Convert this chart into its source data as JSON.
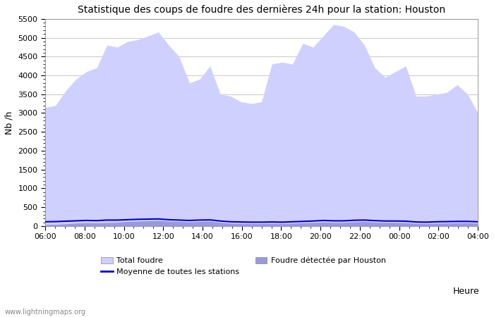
{
  "title": "Statistique des coups de foudre des dernières 24h pour la station: Houston",
  "ylabel": "Nb /h",
  "xlabel": "Heure",
  "watermark": "www.lightningmaps.org",
  "x_labels": [
    "06:00",
    "08:00",
    "10:00",
    "12:00",
    "14:00",
    "16:00",
    "18:00",
    "20:00",
    "22:00",
    "00:00",
    "02:00",
    "04:00"
  ],
  "ylim": [
    0,
    5500
  ],
  "yticks": [
    0,
    500,
    1000,
    1500,
    2000,
    2500,
    3000,
    3500,
    4000,
    4500,
    5000,
    5500
  ],
  "bg_color": "#ffffff",
  "grid_color": "#cccccc",
  "fill_total_color": "#d0d0ff",
  "fill_houston_color": "#9999dd",
  "line_color": "#0000cc",
  "legend_total": "Total foudre",
  "legend_avg": "Moyenne de toutes les stations",
  "legend_houston": "Foudre détectée par Houston",
  "total_foudre": [
    3150,
    3200,
    3600,
    3900,
    4100,
    4200,
    4800,
    4750,
    4900,
    4950,
    5050,
    5150,
    4800,
    4500,
    3800,
    3900,
    4250,
    3500,
    3450,
    3300,
    3250,
    3300,
    4300,
    4350,
    4300,
    4850,
    4750,
    5050,
    5350,
    5300,
    5150,
    4800,
    4200,
    3950,
    4100,
    4250,
    3450,
    3450,
    3500,
    3550,
    3750,
    3500,
    3000
  ],
  "houston_foudre": [
    40,
    45,
    60,
    80,
    90,
    85,
    90,
    100,
    120,
    130,
    140,
    150,
    130,
    120,
    110,
    120,
    130,
    95,
    75,
    70,
    65,
    65,
    70,
    65,
    75,
    85,
    95,
    105,
    95,
    95,
    110,
    120,
    100,
    95,
    95,
    90,
    70,
    65,
    75,
    80,
    85,
    85,
    75
  ],
  "avg_line": [
    115,
    120,
    130,
    140,
    150,
    145,
    160,
    160,
    170,
    180,
    185,
    190,
    170,
    160,
    150,
    160,
    165,
    135,
    115,
    110,
    105,
    105,
    110,
    105,
    115,
    125,
    135,
    150,
    140,
    140,
    155,
    160,
    145,
    135,
    135,
    130,
    110,
    105,
    115,
    120,
    125,
    125,
    115
  ]
}
